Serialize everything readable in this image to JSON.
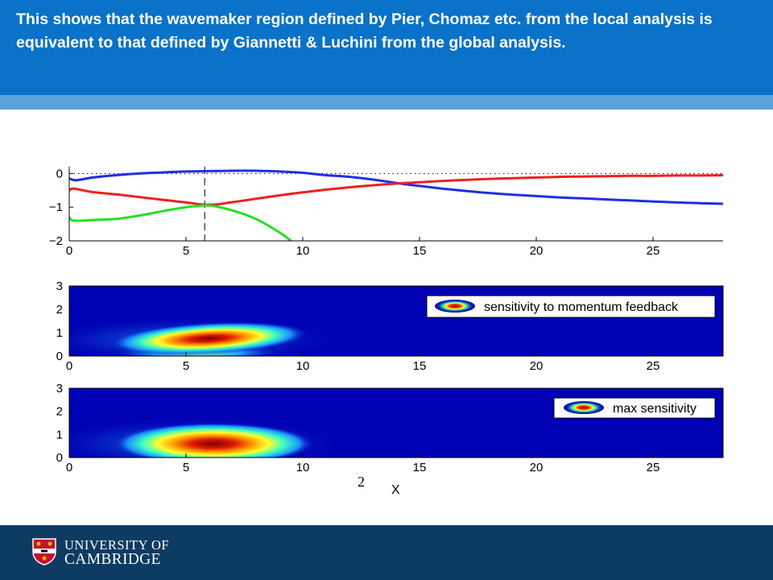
{
  "header": {
    "text": "This shows that the wavemaker region defined by Pier, Chomaz etc. from the local analysis is equivalent to that defined by Giannetti & Luchini from the global analysis.",
    "color": "#0a72c8",
    "stripe_color": "#5ba3dc"
  },
  "footer": {
    "color": "#0d3b62",
    "logo_line1": "UNIVERSITY OF",
    "logo_line2": "CAMBRIDGE",
    "crest_icon": "university-crest-icon"
  },
  "chart_data": [
    {
      "type": "line",
      "title": "",
      "xlabel": "",
      "ylabel": "",
      "xlim": [
        0,
        28
      ],
      "ylim": [
        -2,
        0.2
      ],
      "xticks": [
        0,
        5,
        10,
        15,
        20,
        25
      ],
      "yticks": [
        0,
        -1,
        -2
      ],
      "reference_lines": [
        {
          "orientation": "horizontal",
          "value": 0,
          "style": "dotted"
        },
        {
          "orientation": "vertical",
          "value": 5.8,
          "style": "dashed"
        }
      ],
      "series": [
        {
          "color": "#1f2ee6",
          "x": [
            0,
            0.3,
            1,
            2,
            3,
            4,
            5,
            6,
            7,
            8,
            9,
            10,
            11,
            12,
            13,
            14,
            15,
            16,
            17,
            18,
            19,
            20,
            21,
            22,
            23,
            24,
            25,
            26,
            27,
            28
          ],
          "y": [
            -0.15,
            -0.2,
            -0.12,
            -0.05,
            0.0,
            0.03,
            0.06,
            0.07,
            0.08,
            0.08,
            0.06,
            0.02,
            -0.05,
            -0.1,
            -0.18,
            -0.28,
            -0.37,
            -0.45,
            -0.52,
            -0.58,
            -0.63,
            -0.67,
            -0.71,
            -0.74,
            -0.77,
            -0.8,
            -0.83,
            -0.86,
            -0.88,
            -0.9
          ]
        },
        {
          "color": "#ef1f1f",
          "x": [
            0,
            0.2,
            1,
            2,
            3,
            4,
            5,
            6,
            7,
            8,
            9,
            10,
            11,
            12,
            13,
            14,
            15,
            16,
            17,
            18,
            19,
            20,
            21,
            22,
            23,
            24,
            25,
            26,
            27,
            28
          ],
          "y": [
            -0.5,
            -0.45,
            -0.55,
            -0.62,
            -0.7,
            -0.78,
            -0.86,
            -0.93,
            -0.85,
            -0.75,
            -0.65,
            -0.56,
            -0.48,
            -0.41,
            -0.35,
            -0.3,
            -0.26,
            -0.22,
            -0.19,
            -0.16,
            -0.14,
            -0.12,
            -0.1,
            -0.09,
            -0.08,
            -0.07,
            -0.07,
            -0.06,
            -0.06,
            -0.05
          ]
        },
        {
          "color": "#22e022",
          "x": [
            0,
            0.2,
            1,
            2,
            3,
            4,
            5,
            6,
            7,
            8,
            9,
            9.5
          ],
          "y": [
            -1.3,
            -1.4,
            -1.38,
            -1.35,
            -1.25,
            -1.12,
            -1.0,
            -0.95,
            -1.1,
            -1.35,
            -1.75,
            -2.0
          ]
        }
      ]
    },
    {
      "type": "heatmap",
      "title": "",
      "xlabel": "",
      "ylabel": "",
      "xlim": [
        0,
        28
      ],
      "ylim": [
        0,
        3
      ],
      "xticks": [
        0,
        5,
        10,
        15,
        20,
        25
      ],
      "yticks": [
        0,
        1,
        2,
        3
      ],
      "colormap": "jet",
      "peak": {
        "x": 5.8,
        "y": 0.75
      },
      "legend": {
        "label": "sensitivity to momentum feedback",
        "position": "top-right"
      }
    },
    {
      "type": "heatmap",
      "title": "",
      "xlabel": "X",
      "ylabel": "",
      "xlim": [
        0,
        28
      ],
      "ylim": [
        0,
        3
      ],
      "xticks": [
        0,
        5,
        10,
        15,
        20,
        25
      ],
      "yticks": [
        0,
        1,
        2,
        3
      ],
      "colormap": "jet",
      "peak": {
        "x": 6.0,
        "y": 0.6
      },
      "legend": {
        "label": "max sensitivity",
        "position": "top-right"
      },
      "annotation": "2"
    }
  ]
}
